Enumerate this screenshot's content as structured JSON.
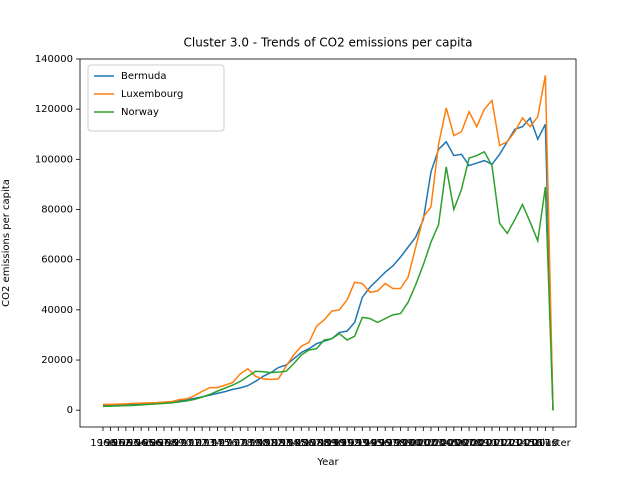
{
  "chart_data": {
    "type": "line",
    "title": "Cluster 3.0 - Trends of CO2 emissions per capita",
    "x_label": "Year",
    "y_label": "CO2 emissions per capita",
    "categories": [
      "1960",
      "1961",
      "1962",
      "1963",
      "1964",
      "1965",
      "1966",
      "1967",
      "1968",
      "1969",
      "1970",
      "1971",
      "1972",
      "1973",
      "1974",
      "1975",
      "1976",
      "1977",
      "1978",
      "1979",
      "1980",
      "1981",
      "1982",
      "1983",
      "1984",
      "1985",
      "1986",
      "1987",
      "1988",
      "1989",
      "1990",
      "1991",
      "1992",
      "1993",
      "1994",
      "1995",
      "1996",
      "1997",
      "1998",
      "1999",
      "2000",
      "2001",
      "2002",
      "2003",
      "2004",
      "2005",
      "2006",
      "2007",
      "2008",
      "2009",
      "2010",
      "2011",
      "2012",
      "2013",
      "2014",
      "2015",
      "2016",
      "2017",
      "2018",
      "Cluster"
    ],
    "series": [
      {
        "name": "Bermuda",
        "color": "#1f77b4",
        "values": [
          1800,
          1900,
          2000,
          2100,
          2300,
          2500,
          2700,
          2900,
          3100,
          3400,
          3800,
          4200,
          4700,
          5300,
          6000,
          6700,
          7400,
          8300,
          8900,
          9800,
          11500,
          13500,
          15000,
          17000,
          18000,
          20500,
          23000,
          24500,
          26500,
          27500,
          28500,
          31000,
          31500,
          35000,
          45000,
          49000,
          52000,
          55000,
          57500,
          61000,
          65000,
          69000,
          76000,
          95000,
          104000,
          107000,
          101500,
          102000,
          97500,
          98500,
          99500,
          98000,
          102000,
          107000,
          112000,
          113000,
          116500,
          108000,
          114000,
          0
        ]
      },
      {
        "name": "Luxembourg",
        "color": "#ff7f0e",
        "values": [
          2300,
          2300,
          2400,
          2500,
          2700,
          2800,
          2900,
          3000,
          3200,
          3400,
          4200,
          4500,
          5800,
          7500,
          9000,
          9000,
          10000,
          11000,
          14500,
          16500,
          13500,
          12500,
          12300,
          12500,
          17500,
          22000,
          25500,
          27000,
          33500,
          36000,
          39500,
          40000,
          44000,
          51000,
          50500,
          47000,
          47500,
          50500,
          48500,
          48500,
          53000,
          65000,
          77000,
          81000,
          106000,
          120500,
          109500,
          111000,
          119000,
          113000,
          120000,
          123500,
          105500,
          107000,
          111000,
          116500,
          113000,
          117000,
          133500,
          0
        ]
      },
      {
        "name": "Norway",
        "color": "#2ca02c",
        "values": [
          1500,
          1600,
          1700,
          1800,
          1900,
          2100,
          2300,
          2500,
          2700,
          2900,
          3300,
          3700,
          4300,
          5200,
          6300,
          7600,
          8800,
          10000,
          11500,
          13500,
          15500,
          15300,
          15000,
          15200,
          15500,
          18500,
          22000,
          24000,
          24500,
          28000,
          28500,
          30500,
          28000,
          29500,
          37000,
          36500,
          35000,
          36500,
          38000,
          38500,
          43000,
          50000,
          58000,
          67000,
          74000,
          97000,
          80000,
          88000,
          100500,
          101500,
          103000,
          97500,
          74500,
          70500,
          76000,
          82000,
          75000,
          67500,
          89000,
          0
        ]
      }
    ],
    "ylim": [
      -6700,
      140000
    ],
    "yticks": [
      0,
      20000,
      40000,
      60000,
      80000,
      100000,
      120000,
      140000
    ],
    "legend": "upper left"
  }
}
